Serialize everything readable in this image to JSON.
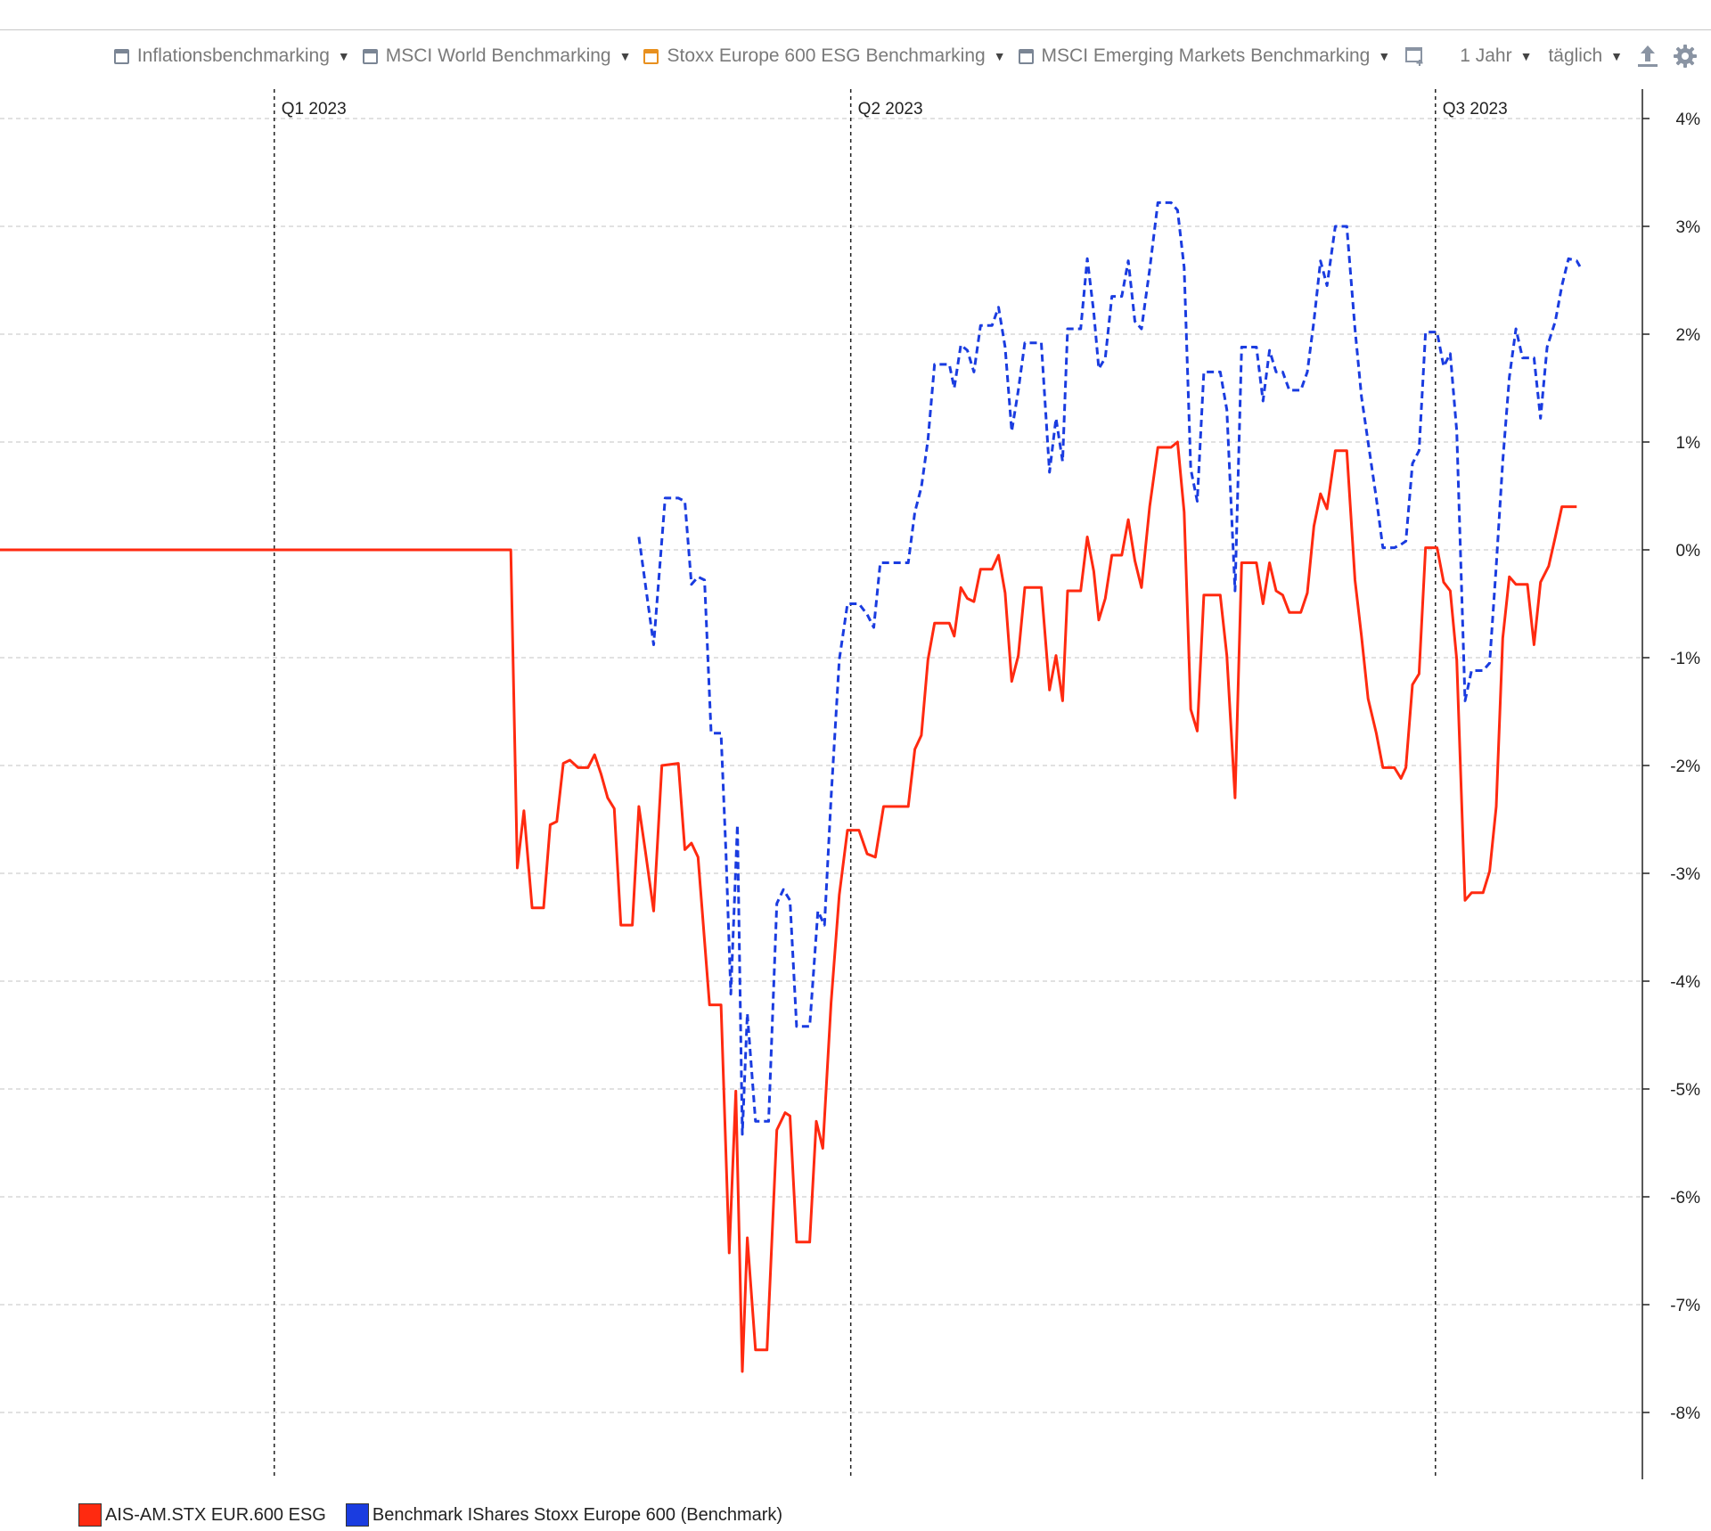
{
  "toolbar": {
    "items": [
      {
        "label": "Inflationsbenchmarking",
        "checked": false,
        "color": "#7a8594"
      },
      {
        "label": "MSCI World Benchmarking",
        "checked": false,
        "color": "#7a8594"
      },
      {
        "label": "Stoxx Europe 600 ESG Benchmarking",
        "checked": false,
        "color": "#e8901e"
      },
      {
        "label": "MSCI Emerging Markets Benchmarking",
        "checked": false,
        "color": "#7a8594"
      }
    ],
    "period": "1 Jahr",
    "frequency": "täglich",
    "icons": [
      "add-chart-icon",
      "export-icon",
      "gear-icon"
    ]
  },
  "chart_data": {
    "type": "line",
    "yunit": "%",
    "ylim": [
      -8.6,
      4.2
    ],
    "yticks": [
      4,
      3,
      2,
      1,
      0,
      -1,
      -2,
      -3,
      -4,
      -5,
      -6,
      -7,
      -8
    ],
    "ytick_labels": [
      "4%",
      "3%",
      "2%",
      "1%",
      "0%",
      "-1%",
      "-2%",
      "-3%",
      "-4%",
      "-5%",
      "-6%",
      "-7%",
      "-8%"
    ],
    "xlim": [
      0,
      100
    ],
    "quarter_markers": [
      {
        "label": "Q1 2023",
        "x": 16.7
      },
      {
        "label": "Q2 2023",
        "x": 51.8
      },
      {
        "label": "Q3 2023",
        "x": 87.4
      }
    ],
    "grid": true,
    "legend_position": "bottom-left",
    "series": [
      {
        "name": "AIS-AM.STX EUR.600 ESG",
        "color": "#ff2a10",
        "style": "solid",
        "points": [
          [
            0,
            0
          ],
          [
            31.1,
            0
          ],
          [
            31.5,
            -2.95
          ],
          [
            31.9,
            -2.42
          ],
          [
            32.4,
            -3.32
          ],
          [
            33.1,
            -3.32
          ],
          [
            33.5,
            -2.55
          ],
          [
            33.9,
            -2.52
          ],
          [
            34.3,
            -1.98
          ],
          [
            34.7,
            -1.95
          ],
          [
            35.2,
            -2.02
          ],
          [
            35.8,
            -2.02
          ],
          [
            36.2,
            -1.9
          ],
          [
            36.6,
            -2.08
          ],
          [
            37.0,
            -2.3
          ],
          [
            37.4,
            -2.4
          ],
          [
            37.8,
            -3.48
          ],
          [
            38.5,
            -3.48
          ],
          [
            38.9,
            -2.38
          ],
          [
            39.3,
            -2.8
          ],
          [
            39.8,
            -3.35
          ],
          [
            40.3,
            -2.0
          ],
          [
            41.3,
            -1.98
          ],
          [
            41.7,
            -2.78
          ],
          [
            42.1,
            -2.72
          ],
          [
            42.5,
            -2.85
          ],
          [
            43.2,
            -4.22
          ],
          [
            43.9,
            -4.22
          ],
          [
            44.4,
            -6.52
          ],
          [
            44.8,
            -5.02
          ],
          [
            45.2,
            -7.62
          ],
          [
            45.5,
            -6.38
          ],
          [
            46.0,
            -7.42
          ],
          [
            46.7,
            -7.42
          ],
          [
            47.3,
            -5.38
          ],
          [
            47.8,
            -5.22
          ],
          [
            48.1,
            -5.25
          ],
          [
            48.5,
            -6.42
          ],
          [
            49.3,
            -6.42
          ],
          [
            49.7,
            -5.3
          ],
          [
            50.1,
            -5.55
          ],
          [
            50.6,
            -4.2
          ],
          [
            51.1,
            -3.2
          ],
          [
            51.6,
            -2.6
          ],
          [
            52.3,
            -2.6
          ],
          [
            52.8,
            -2.82
          ],
          [
            53.3,
            -2.85
          ],
          [
            53.8,
            -2.38
          ],
          [
            55.3,
            -2.38
          ],
          [
            55.7,
            -1.85
          ],
          [
            56.1,
            -1.72
          ],
          [
            56.5,
            -1.02
          ],
          [
            56.9,
            -0.68
          ],
          [
            57.8,
            -0.68
          ],
          [
            58.1,
            -0.8
          ],
          [
            58.5,
            -0.35
          ],
          [
            58.9,
            -0.45
          ],
          [
            59.3,
            -0.48
          ],
          [
            59.7,
            -0.18
          ],
          [
            60.4,
            -0.18
          ],
          [
            60.8,
            -0.05
          ],
          [
            61.2,
            -0.4
          ],
          [
            61.6,
            -1.22
          ],
          [
            62.0,
            -0.98
          ],
          [
            62.4,
            -0.35
          ],
          [
            63.4,
            -0.35
          ],
          [
            63.9,
            -1.3
          ],
          [
            64.3,
            -0.98
          ],
          [
            64.7,
            -1.4
          ],
          [
            65.0,
            -0.38
          ],
          [
            65.8,
            -0.38
          ],
          [
            66.2,
            0.12
          ],
          [
            66.6,
            -0.2
          ],
          [
            66.9,
            -0.65
          ],
          [
            67.3,
            -0.45
          ],
          [
            67.7,
            -0.05
          ],
          [
            68.3,
            -0.05
          ],
          [
            68.7,
            0.28
          ],
          [
            69.1,
            -0.1
          ],
          [
            69.5,
            -0.35
          ],
          [
            70.0,
            0.4
          ],
          [
            70.5,
            0.95
          ],
          [
            71.3,
            0.95
          ],
          [
            71.7,
            1.0
          ],
          [
            72.1,
            0.35
          ],
          [
            72.5,
            -1.48
          ],
          [
            72.9,
            -1.68
          ],
          [
            73.3,
            -0.42
          ],
          [
            74.3,
            -0.42
          ],
          [
            74.7,
            -0.98
          ],
          [
            75.2,
            -2.3
          ],
          [
            75.6,
            -0.12
          ],
          [
            76.5,
            -0.12
          ],
          [
            76.9,
            -0.5
          ],
          [
            77.3,
            -0.12
          ],
          [
            77.7,
            -0.38
          ],
          [
            78.1,
            -0.42
          ],
          [
            78.5,
            -0.58
          ],
          [
            79.2,
            -0.58
          ],
          [
            79.6,
            -0.4
          ],
          [
            80.0,
            0.22
          ],
          [
            80.4,
            0.52
          ],
          [
            80.8,
            0.38
          ],
          [
            81.3,
            0.92
          ],
          [
            82.0,
            0.92
          ],
          [
            82.5,
            -0.28
          ],
          [
            82.9,
            -0.8
          ],
          [
            83.3,
            -1.38
          ],
          [
            83.8,
            -1.7
          ],
          [
            84.2,
            -2.02
          ],
          [
            84.9,
            -2.02
          ],
          [
            85.3,
            -2.12
          ],
          [
            85.6,
            -2.02
          ],
          [
            86.0,
            -1.25
          ],
          [
            86.4,
            -1.15
          ],
          [
            86.8,
            0.02
          ],
          [
            87.5,
            0.02
          ],
          [
            87.9,
            -0.3
          ],
          [
            88.3,
            -0.38
          ],
          [
            88.7,
            -1.02
          ],
          [
            89.2,
            -3.25
          ],
          [
            89.6,
            -3.18
          ],
          [
            90.3,
            -3.18
          ],
          [
            90.7,
            -2.98
          ],
          [
            91.1,
            -2.38
          ],
          [
            91.5,
            -0.82
          ],
          [
            91.9,
            -0.25
          ],
          [
            92.3,
            -0.32
          ],
          [
            93.0,
            -0.32
          ],
          [
            93.4,
            -0.88
          ],
          [
            93.8,
            -0.3
          ],
          [
            94.3,
            -0.15
          ],
          [
            94.7,
            0.12
          ],
          [
            95.1,
            0.4
          ],
          [
            96.0,
            0.4
          ]
        ]
      },
      {
        "name": "Benchmark IShares Stoxx Europe 600  (Benchmark)",
        "color": "#1a3ce0",
        "style": "dashed",
        "points": [
          [
            38.9,
            0.12
          ],
          [
            39.8,
            -0.88
          ],
          [
            40.5,
            0.48
          ],
          [
            41.3,
            0.48
          ],
          [
            41.7,
            0.45
          ],
          [
            42.1,
            -0.32
          ],
          [
            42.5,
            -0.25
          ],
          [
            42.9,
            -0.28
          ],
          [
            43.3,
            -1.7
          ],
          [
            43.9,
            -1.7
          ],
          [
            44.2,
            -2.8
          ],
          [
            44.5,
            -4.12
          ],
          [
            44.9,
            -2.55
          ],
          [
            45.2,
            -5.42
          ],
          [
            45.5,
            -4.3
          ],
          [
            46.0,
            -5.3
          ],
          [
            46.8,
            -5.3
          ],
          [
            47.3,
            -3.28
          ],
          [
            47.7,
            -3.15
          ],
          [
            48.1,
            -3.25
          ],
          [
            48.5,
            -4.42
          ],
          [
            49.3,
            -4.42
          ],
          [
            49.8,
            -3.35
          ],
          [
            50.2,
            -3.48
          ],
          [
            50.6,
            -2.3
          ],
          [
            51.1,
            -1.02
          ],
          [
            51.6,
            -0.5
          ],
          [
            52.3,
            -0.5
          ],
          [
            52.8,
            -0.6
          ],
          [
            53.2,
            -0.72
          ],
          [
            53.6,
            -0.12
          ],
          [
            55.3,
            -0.12
          ],
          [
            55.7,
            0.35
          ],
          [
            56.1,
            0.58
          ],
          [
            56.5,
            1.02
          ],
          [
            56.9,
            1.72
          ],
          [
            57.8,
            1.72
          ],
          [
            58.1,
            1.5
          ],
          [
            58.5,
            1.9
          ],
          [
            58.9,
            1.85
          ],
          [
            59.3,
            1.65
          ],
          [
            59.7,
            2.08
          ],
          [
            60.4,
            2.08
          ],
          [
            60.8,
            2.25
          ],
          [
            61.2,
            1.88
          ],
          [
            61.6,
            1.1
          ],
          [
            62.0,
            1.48
          ],
          [
            62.4,
            1.92
          ],
          [
            63.4,
            1.92
          ],
          [
            63.9,
            0.72
          ],
          [
            64.3,
            1.22
          ],
          [
            64.7,
            0.82
          ],
          [
            65.0,
            2.05
          ],
          [
            65.8,
            2.05
          ],
          [
            66.2,
            2.7
          ],
          [
            66.6,
            2.2
          ],
          [
            66.9,
            1.68
          ],
          [
            67.3,
            1.78
          ],
          [
            67.7,
            2.35
          ],
          [
            68.3,
            2.35
          ],
          [
            68.7,
            2.68
          ],
          [
            69.1,
            2.12
          ],
          [
            69.5,
            2.05
          ],
          [
            70.0,
            2.6
          ],
          [
            70.5,
            3.22
          ],
          [
            71.3,
            3.22
          ],
          [
            71.7,
            3.15
          ],
          [
            72.1,
            2.62
          ],
          [
            72.5,
            0.75
          ],
          [
            72.9,
            0.45
          ],
          [
            73.3,
            1.65
          ],
          [
            74.3,
            1.65
          ],
          [
            74.7,
            1.3
          ],
          [
            75.2,
            -0.38
          ],
          [
            75.6,
            1.88
          ],
          [
            76.5,
            1.88
          ],
          [
            76.9,
            1.38
          ],
          [
            77.3,
            1.85
          ],
          [
            77.7,
            1.65
          ],
          [
            78.1,
            1.65
          ],
          [
            78.5,
            1.48
          ],
          [
            79.2,
            1.48
          ],
          [
            79.6,
            1.65
          ],
          [
            80.0,
            2.12
          ],
          [
            80.4,
            2.68
          ],
          [
            80.8,
            2.45
          ],
          [
            81.3,
            3.0
          ],
          [
            82.0,
            3.0
          ],
          [
            82.5,
            2.05
          ],
          [
            82.9,
            1.42
          ],
          [
            83.3,
            1.0
          ],
          [
            83.8,
            0.48
          ],
          [
            84.2,
            0.02
          ],
          [
            84.9,
            0.02
          ],
          [
            85.3,
            0.05
          ],
          [
            85.6,
            0.08
          ],
          [
            86.0,
            0.8
          ],
          [
            86.4,
            0.92
          ],
          [
            86.8,
            2.02
          ],
          [
            87.5,
            2.02
          ],
          [
            87.9,
            1.7
          ],
          [
            88.3,
            1.82
          ],
          [
            88.7,
            1.1
          ],
          [
            89.2,
            -1.4
          ],
          [
            89.6,
            -1.12
          ],
          [
            90.3,
            -1.12
          ],
          [
            90.7,
            -1.05
          ],
          [
            91.1,
            -0.15
          ],
          [
            91.5,
            0.82
          ],
          [
            91.9,
            1.6
          ],
          [
            92.3,
            2.05
          ],
          [
            92.7,
            1.78
          ],
          [
            93.4,
            1.78
          ],
          [
            93.8,
            1.22
          ],
          [
            94.2,
            1.88
          ],
          [
            94.7,
            2.12
          ],
          [
            95.1,
            2.45
          ],
          [
            95.5,
            2.7
          ],
          [
            96.0,
            2.68
          ],
          [
            96.3,
            2.6
          ]
        ]
      }
    ]
  }
}
